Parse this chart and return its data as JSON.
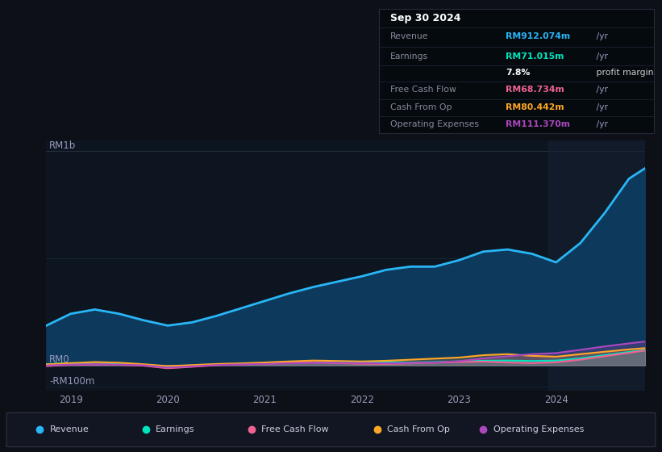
{
  "background_color": "#0d1117",
  "chart_bg_color": "#0d1520",
  "title_date": "Sep 30 2024",
  "info_rows": [
    {
      "label": "Revenue",
      "value": "RM912.074m",
      "value_color": "#29b6f6",
      "suffix": " /yr"
    },
    {
      "label": "Earnings",
      "value": "RM71.015m",
      "value_color": "#00e5c0",
      "suffix": " /yr"
    },
    {
      "label": "",
      "value": "7.8%",
      "value_color": "#ffffff",
      "suffix": " profit margin"
    },
    {
      "label": "Free Cash Flow",
      "value": "RM68.734m",
      "value_color": "#f06292",
      "suffix": " /yr"
    },
    {
      "label": "Cash From Op",
      "value": "RM80.442m",
      "value_color": "#ffa726",
      "suffix": " /yr"
    },
    {
      "label": "Operating Expenses",
      "value": "RM111.370m",
      "value_color": "#ab47bc",
      "suffix": " /yr"
    }
  ],
  "y_label_top": "RM1b",
  "y_label_mid": "RM0",
  "y_label_bot": "-RM100m",
  "x_ticks": [
    "2019",
    "2020",
    "2021",
    "2022",
    "2023",
    "2024"
  ],
  "x_tick_pos": [
    2019,
    2020,
    2021,
    2022,
    2023,
    2024
  ],
  "ylim": [
    -120,
    1050
  ],
  "xlim": [
    2018.75,
    2024.92
  ],
  "revenue_color": "#29b6f6",
  "earnings_color": "#00e5c0",
  "fcf_color": "#f06292",
  "cashfromop_color": "#ffa726",
  "opex_color": "#ab47bc",
  "revenue_fill_color": "#0d3a5c",
  "legend": [
    {
      "label": "Revenue",
      "color": "#29b6f6"
    },
    {
      "label": "Earnings",
      "color": "#00e5c0"
    },
    {
      "label": "Free Cash Flow",
      "color": "#f06292"
    },
    {
      "label": "Cash From Op",
      "color": "#ffa726"
    },
    {
      "label": "Operating Expenses",
      "color": "#ab47bc"
    }
  ],
  "revenue_data": [
    [
      2018.75,
      185
    ],
    [
      2019.0,
      240
    ],
    [
      2019.25,
      260
    ],
    [
      2019.5,
      240
    ],
    [
      2019.75,
      210
    ],
    [
      2020.0,
      185
    ],
    [
      2020.25,
      200
    ],
    [
      2020.5,
      230
    ],
    [
      2020.75,
      265
    ],
    [
      2021.0,
      300
    ],
    [
      2021.25,
      335
    ],
    [
      2021.5,
      365
    ],
    [
      2021.75,
      390
    ],
    [
      2022.0,
      415
    ],
    [
      2022.25,
      445
    ],
    [
      2022.5,
      460
    ],
    [
      2022.75,
      460
    ],
    [
      2023.0,
      490
    ],
    [
      2023.25,
      530
    ],
    [
      2023.5,
      540
    ],
    [
      2023.75,
      520
    ],
    [
      2024.0,
      480
    ],
    [
      2024.25,
      570
    ],
    [
      2024.5,
      710
    ],
    [
      2024.75,
      870
    ],
    [
      2024.92,
      920
    ]
  ],
  "earnings_data": [
    [
      2018.75,
      5
    ],
    [
      2019.0,
      10
    ],
    [
      2019.25,
      8
    ],
    [
      2019.5,
      5
    ],
    [
      2019.75,
      2
    ],
    [
      2020.0,
      -10
    ],
    [
      2020.25,
      -4
    ],
    [
      2020.5,
      3
    ],
    [
      2020.75,
      6
    ],
    [
      2021.0,
      9
    ],
    [
      2021.25,
      11
    ],
    [
      2021.5,
      13
    ],
    [
      2021.75,
      15
    ],
    [
      2022.0,
      17
    ],
    [
      2022.25,
      15
    ],
    [
      2022.5,
      13
    ],
    [
      2022.75,
      15
    ],
    [
      2023.0,
      18
    ],
    [
      2023.25,
      21
    ],
    [
      2023.5,
      22
    ],
    [
      2023.75,
      20
    ],
    [
      2024.0,
      22
    ],
    [
      2024.25,
      32
    ],
    [
      2024.5,
      47
    ],
    [
      2024.75,
      62
    ],
    [
      2024.92,
      71
    ]
  ],
  "fcf_data": [
    [
      2018.75,
      -4
    ],
    [
      2019.0,
      2
    ],
    [
      2019.25,
      4
    ],
    [
      2019.5,
      2
    ],
    [
      2019.75,
      -2
    ],
    [
      2020.0,
      -14
    ],
    [
      2020.25,
      -7
    ],
    [
      2020.5,
      0
    ],
    [
      2020.75,
      4
    ],
    [
      2021.0,
      8
    ],
    [
      2021.25,
      12
    ],
    [
      2021.5,
      13
    ],
    [
      2021.75,
      10
    ],
    [
      2022.0,
      7
    ],
    [
      2022.25,
      6
    ],
    [
      2022.5,
      9
    ],
    [
      2022.75,
      12
    ],
    [
      2023.0,
      15
    ],
    [
      2023.25,
      17
    ],
    [
      2023.5,
      13
    ],
    [
      2023.75,
      10
    ],
    [
      2024.0,
      14
    ],
    [
      2024.25,
      26
    ],
    [
      2024.5,
      42
    ],
    [
      2024.75,
      58
    ],
    [
      2024.92,
      69
    ]
  ],
  "cashfromop_data": [
    [
      2018.75,
      4
    ],
    [
      2019.0,
      10
    ],
    [
      2019.25,
      15
    ],
    [
      2019.5,
      12
    ],
    [
      2019.75,
      5
    ],
    [
      2020.0,
      -4
    ],
    [
      2020.25,
      1
    ],
    [
      2020.5,
      6
    ],
    [
      2020.75,
      9
    ],
    [
      2021.0,
      13
    ],
    [
      2021.25,
      18
    ],
    [
      2021.5,
      22
    ],
    [
      2021.75,
      20
    ],
    [
      2022.0,
      18
    ],
    [
      2022.25,
      21
    ],
    [
      2022.5,
      26
    ],
    [
      2022.75,
      31
    ],
    [
      2023.0,
      36
    ],
    [
      2023.25,
      47
    ],
    [
      2023.5,
      52
    ],
    [
      2023.75,
      44
    ],
    [
      2024.0,
      40
    ],
    [
      2024.25,
      52
    ],
    [
      2024.5,
      63
    ],
    [
      2024.75,
      74
    ],
    [
      2024.92,
      80
    ]
  ],
  "opex_data": [
    [
      2018.75,
      -1
    ],
    [
      2019.0,
      3
    ],
    [
      2019.25,
      5
    ],
    [
      2019.5,
      3
    ],
    [
      2019.75,
      0
    ],
    [
      2020.0,
      -11
    ],
    [
      2020.25,
      -5
    ],
    [
      2020.5,
      1
    ],
    [
      2020.75,
      4
    ],
    [
      2021.0,
      6
    ],
    [
      2021.25,
      9
    ],
    [
      2021.5,
      11
    ],
    [
      2021.75,
      12
    ],
    [
      2022.0,
      10
    ],
    [
      2022.25,
      9
    ],
    [
      2022.5,
      11
    ],
    [
      2022.75,
      13
    ],
    [
      2023.0,
      19
    ],
    [
      2023.25,
      32
    ],
    [
      2023.5,
      42
    ],
    [
      2023.75,
      52
    ],
    [
      2024.0,
      57
    ],
    [
      2024.25,
      72
    ],
    [
      2024.5,
      88
    ],
    [
      2024.75,
      102
    ],
    [
      2024.92,
      111
    ]
  ]
}
